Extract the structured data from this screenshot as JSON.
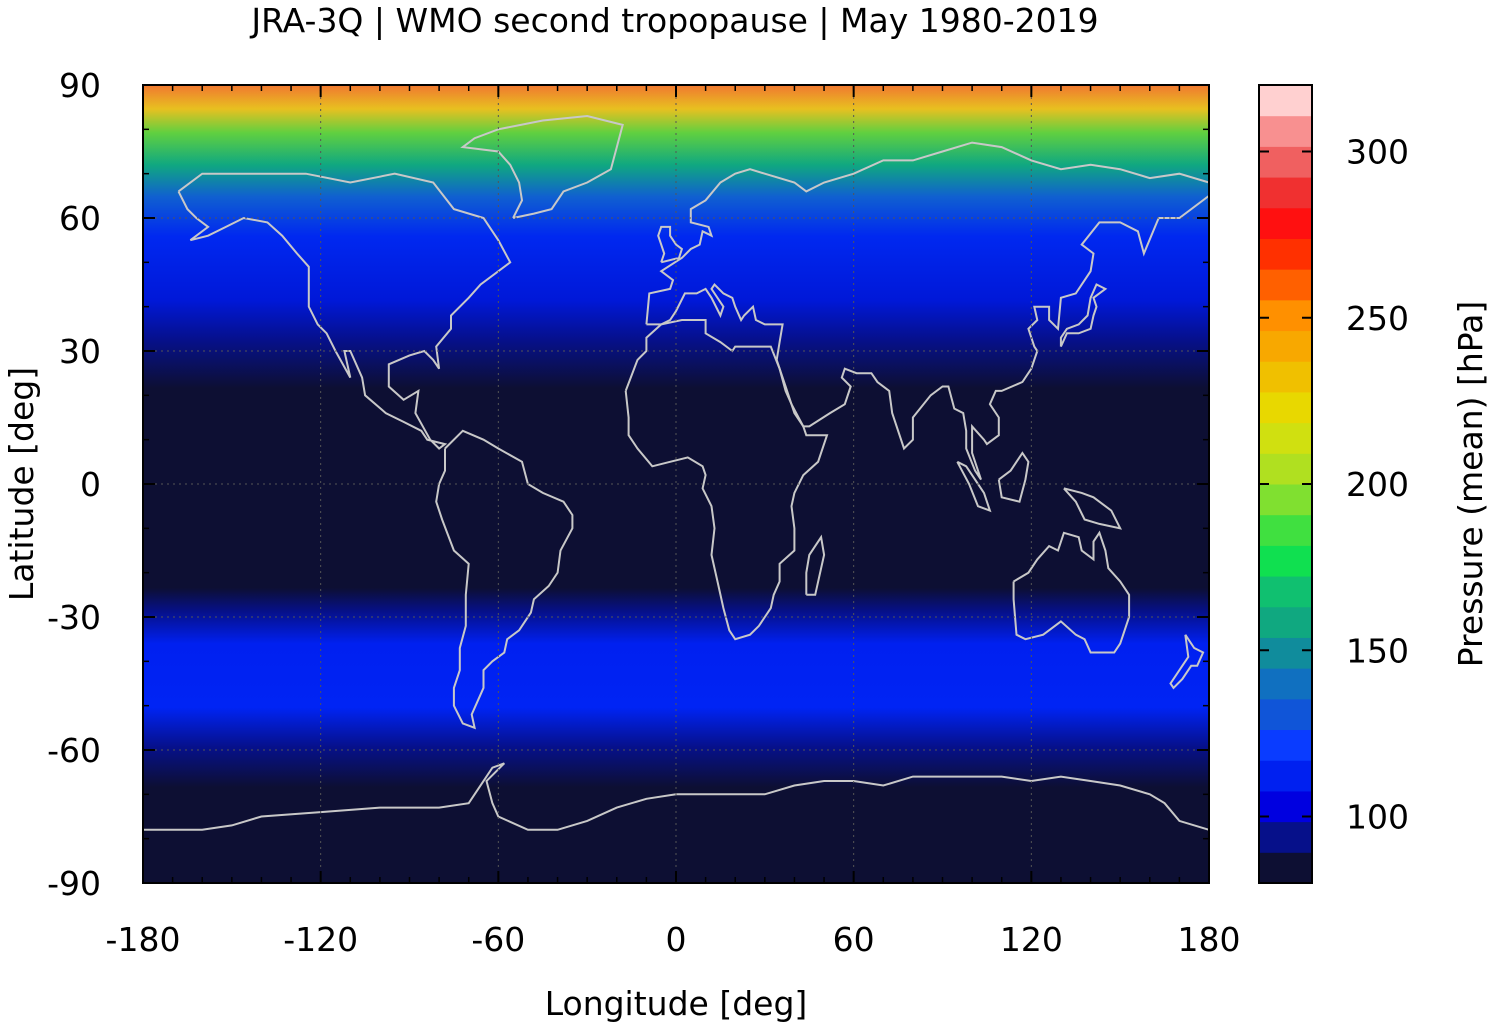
{
  "chart_data": {
    "type": "heatmap",
    "title": "JRA-3Q | WMO second tropopause | May 1980-2019",
    "xlabel": "Longitude [deg]",
    "ylabel": "Latitude [deg]",
    "colorbar_label": "Pressure (mean) [hPa]",
    "xlim": [
      -180,
      180
    ],
    "ylim": [
      -90,
      90
    ],
    "x_ticks": [
      -180,
      -120,
      -60,
      0,
      60,
      120,
      180
    ],
    "x_tick_labels": [
      "-180",
      "-120",
      "-60",
      "0",
      "60",
      "120",
      "180"
    ],
    "y_ticks": [
      90,
      60,
      30,
      0,
      -30,
      -60,
      -90
    ],
    "y_tick_labels": [
      "90",
      "60",
      "30",
      "0",
      "-30",
      "-60",
      "-90"
    ],
    "colorbar": {
      "range": [
        80,
        320
      ],
      "ticks": [
        100,
        150,
        200,
        250,
        300
      ],
      "tick_labels": [
        "100",
        "150",
        "200",
        "250",
        "300"
      ],
      "colors": [
        "#0d0f33",
        "#06108a",
        "#0000e0",
        "#0020f0",
        "#0a3cff",
        "#1055d8",
        "#1070c0",
        "#108c9c",
        "#10a880",
        "#10c070",
        "#10e050",
        "#40e040",
        "#80e030",
        "#b0e020",
        "#d0e010",
        "#e8d800",
        "#f0c000",
        "#f8a800",
        "#ff9000",
        "#ff6000",
        "#ff3000",
        "#ff1010",
        "#f03030",
        "#f06060",
        "#f89090",
        "#ffd0d0"
      ]
    },
    "latitude_profile": {
      "description_lat": [
        -90,
        -80,
        -70,
        -60,
        -50,
        -40,
        -30,
        -20,
        -10,
        0,
        10,
        20,
        30,
        40,
        50,
        60,
        70,
        80,
        90
      ],
      "mean_pressure_hPa": [
        86,
        90,
        88,
        95,
        104,
        107,
        104,
        92,
        86,
        86,
        86,
        88,
        96,
        108,
        110,
        118,
        135,
        190,
        240
      ]
    },
    "grid": true,
    "overlay": "coastlines"
  }
}
